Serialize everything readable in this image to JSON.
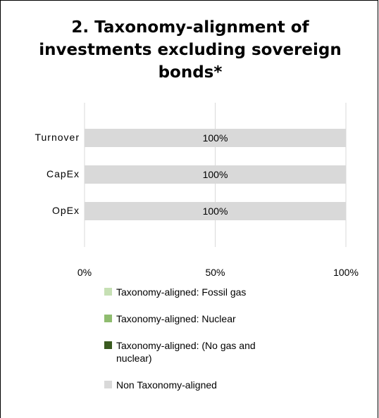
{
  "chart_data": {
    "type": "bar",
    "orientation": "horizontal",
    "stacked": true,
    "title": "2. Taxonomy-alignment of investments excluding sovereign bonds*",
    "categories": [
      "Turnover",
      "CapEx",
      "OpEx"
    ],
    "series": [
      {
        "name": "Taxonomy-aligned: Fossil gas",
        "values": [
          0,
          0,
          0
        ],
        "color": "#c6e0b4"
      },
      {
        "name": "Taxonomy-aligned: Nuclear",
        "values": [
          0,
          0,
          0
        ],
        "color": "#8fbc6f"
      },
      {
        "name": "Taxonomy-aligned: (No gas and nuclear)",
        "values": [
          0,
          0,
          0
        ],
        "color": "#3a5a1f"
      },
      {
        "name": "Non Taxonomy-aligned",
        "values": [
          100,
          100,
          100
        ],
        "color": "#d9d9d9"
      }
    ],
    "data_labels": [
      "100%",
      "100%",
      "100%"
    ],
    "xticks": [
      "0%",
      "50%",
      "100%"
    ],
    "xlim": [
      0,
      100
    ],
    "grid": "vertical gridlines at 0%, 50%, 100%",
    "legend_position": "bottom"
  },
  "legend": {
    "items": [
      {
        "label": "Taxonomy-aligned: Fossil gas",
        "color": "#c6e0b4"
      },
      {
        "label": "Taxonomy-aligned: Nuclear",
        "color": "#8fbc6f"
      },
      {
        "label": "Taxonomy-aligned: (No gas and\nnuclear)",
        "color": "#3a5a1f"
      },
      {
        "label": "Non Taxonomy-aligned",
        "color": "#d9d9d9"
      }
    ]
  }
}
